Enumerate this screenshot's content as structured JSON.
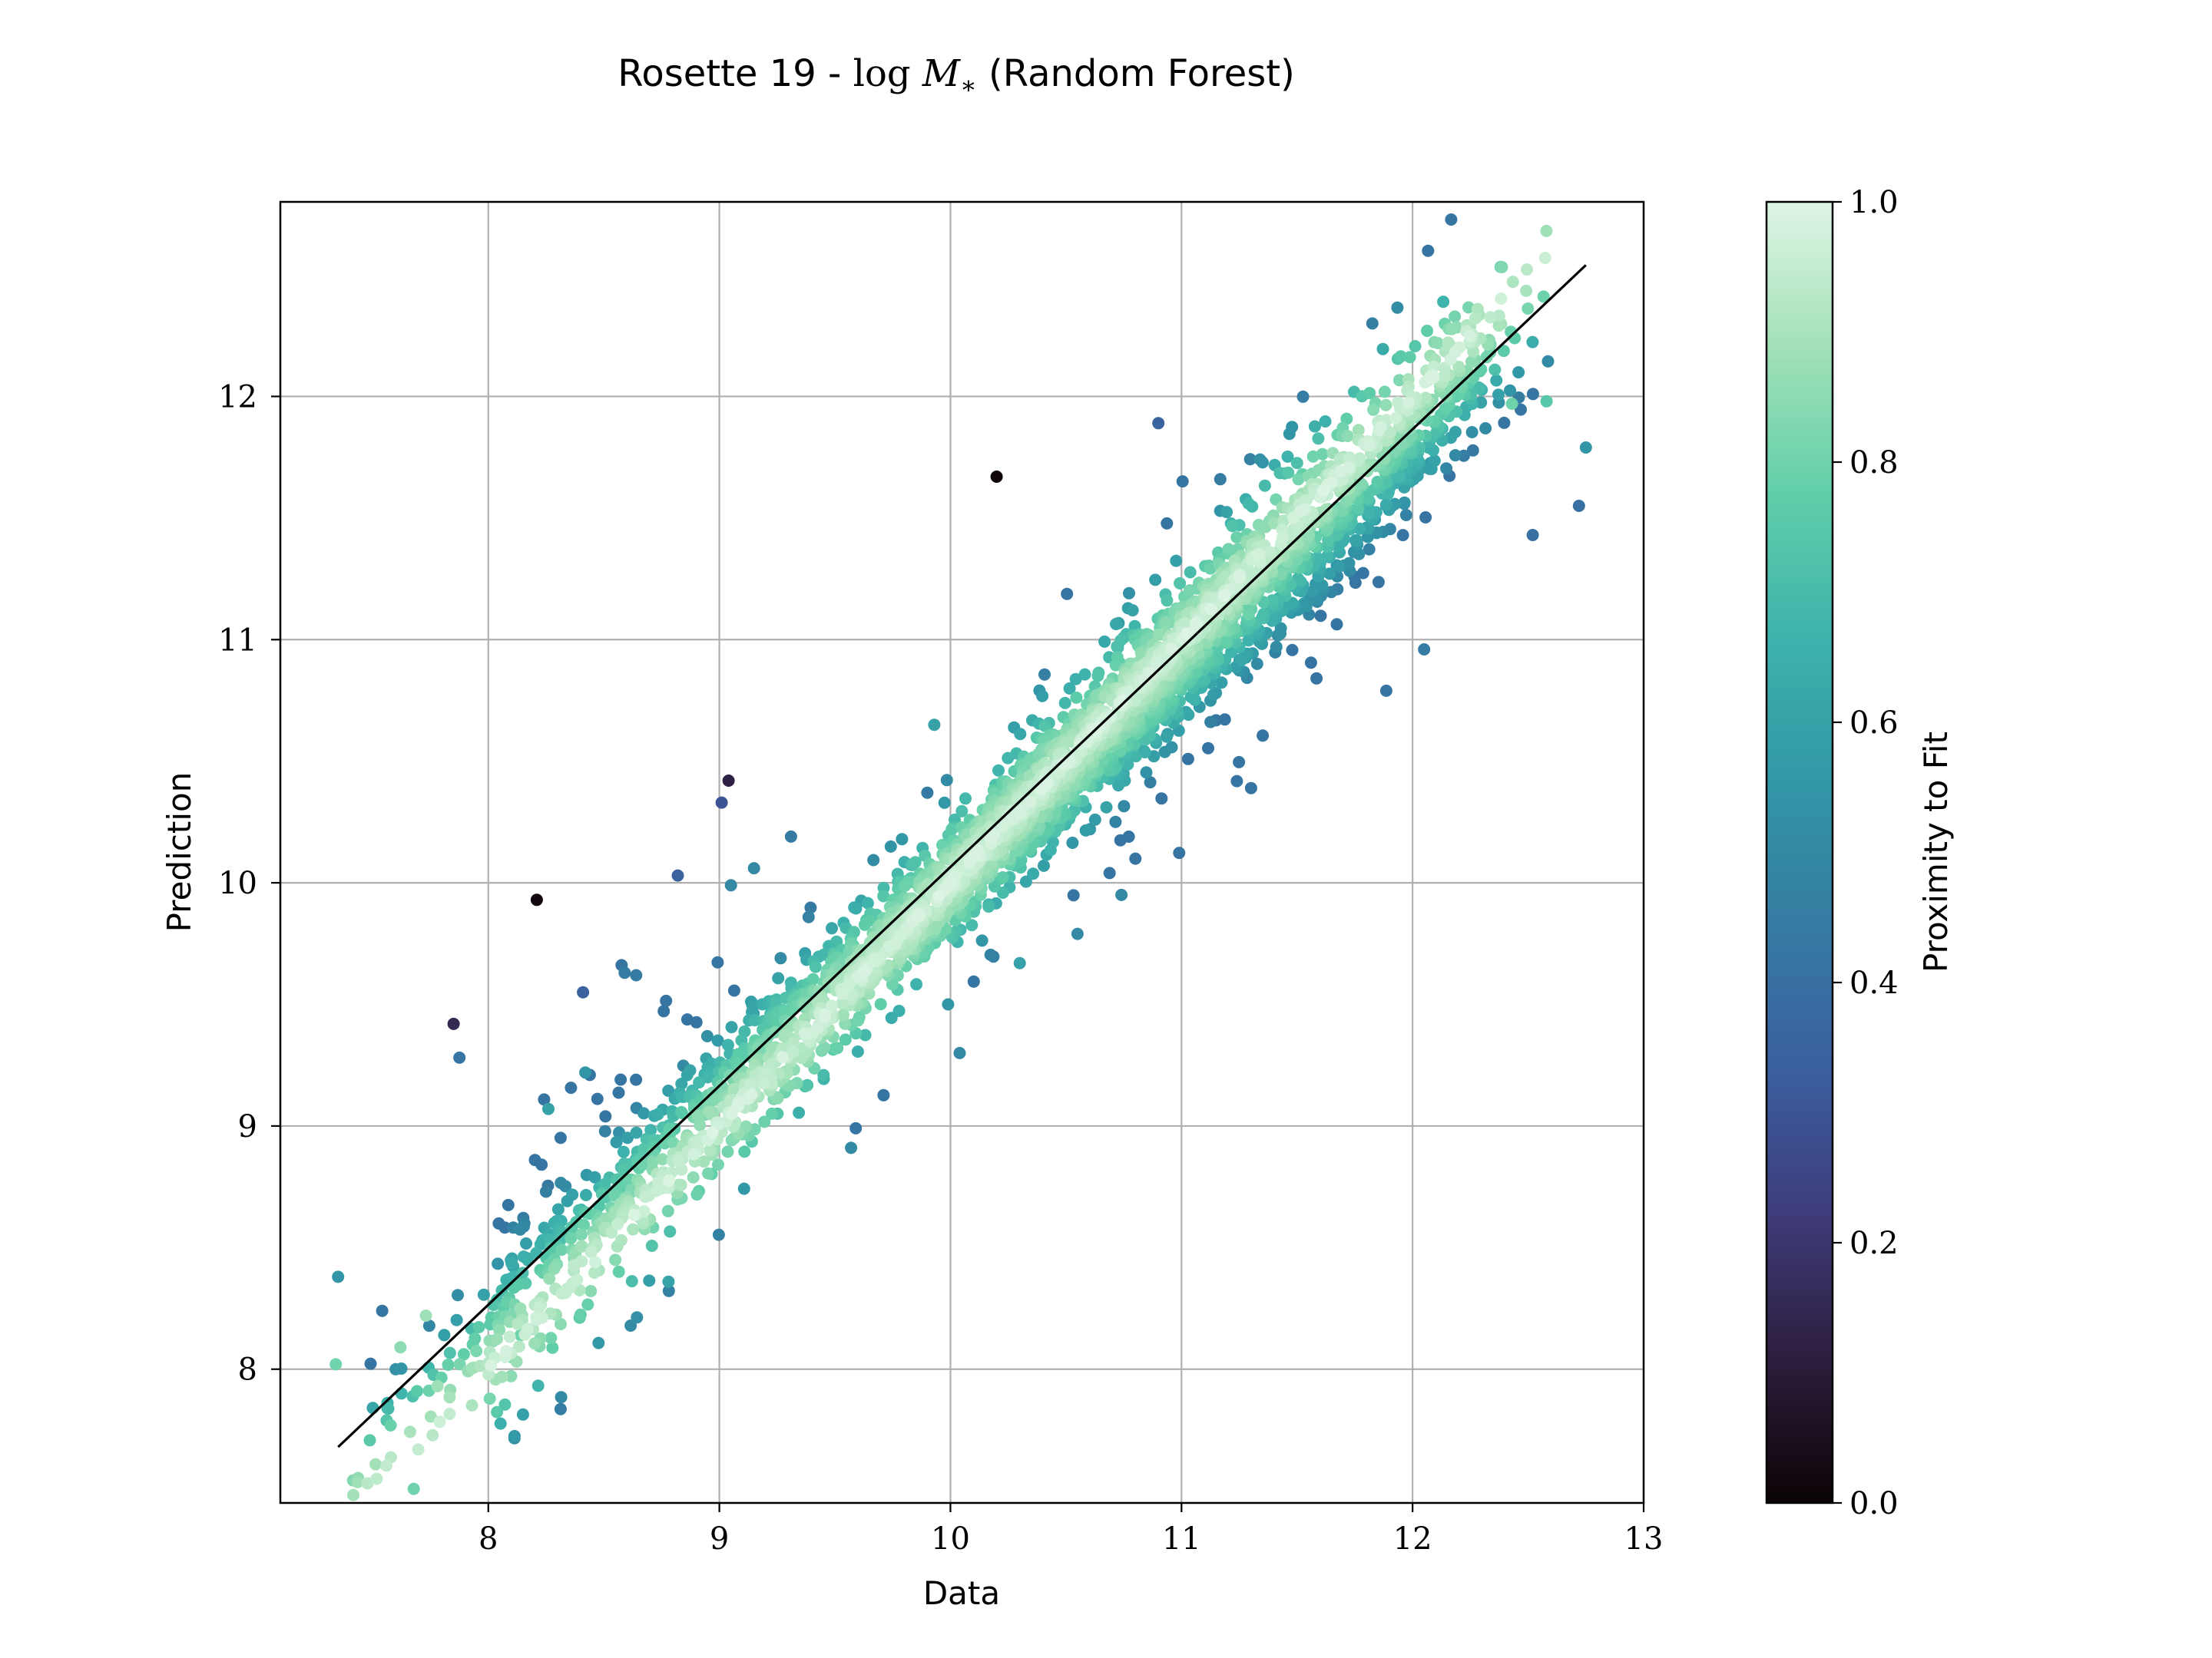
{
  "chart_data": {
    "type": "scatter",
    "title": "Rosette 19 - log M* (Random Forest)",
    "title_parts": {
      "prefix": "Rosette 19 - ",
      "log": "log",
      "symbol": "M",
      "subscript": "∗",
      "suffix": " (Random Forest)"
    },
    "xlabel": "Data",
    "ylabel": "Prediction",
    "xlim": [
      7.1,
      13.0
    ],
    "ylim": [
      7.45,
      12.8
    ],
    "x_ticks": [
      8,
      9,
      10,
      11,
      12,
      13
    ],
    "y_ticks": [
      8,
      9,
      10,
      11,
      12
    ],
    "grid": true,
    "reference_line": {
      "from": [
        7.35,
        7.68
      ],
      "to": [
        12.75,
        12.54
      ],
      "color": "#000000"
    },
    "colorbar": {
      "label": "Proximity to Fit",
      "range": [
        0.0,
        1.0
      ],
      "ticks": [
        "0.0",
        "0.2",
        "0.4",
        "0.6",
        "0.8",
        "1.0"
      ],
      "colormap": "mako",
      "stops": [
        "#0b0405",
        "#2d1e3e",
        "#3e3c7a",
        "#3b5fa0",
        "#357ba2",
        "#3297a6",
        "#3eb3ac",
        "#62cfa9",
        "#a3e1b8",
        "#def5e5"
      ]
    },
    "main_band": {
      "x_range": [
        7.4,
        12.6
      ],
      "point_count": 3600,
      "seed": 19
    },
    "points": [
      {
        "x": 7.35,
        "y": 8.38,
        "v": 0.55
      },
      {
        "x": 7.34,
        "y": 8.02,
        "v": 0.8
      },
      {
        "x": 7.62,
        "y": 8.09,
        "v": 0.85
      },
      {
        "x": 7.78,
        "y": 7.93,
        "v": 0.88
      },
      {
        "x": 7.73,
        "y": 8.22,
        "v": 0.88
      },
      {
        "x": 7.85,
        "y": 9.42,
        "v": 0.15
      },
      {
        "x": 8.21,
        "y": 9.93,
        "v": 0.02
      },
      {
        "x": 8.41,
        "y": 9.55,
        "v": 0.35
      },
      {
        "x": 8.59,
        "y": 9.63,
        "v": 0.45
      },
      {
        "x": 8.64,
        "y": 9.62,
        "v": 0.45
      },
      {
        "x": 8.42,
        "y": 9.22,
        "v": 0.55
      },
      {
        "x": 8.26,
        "y": 9.07,
        "v": 0.6
      },
      {
        "x": 8.82,
        "y": 10.03,
        "v": 0.35
      },
      {
        "x": 9.01,
        "y": 10.33,
        "v": 0.3
      },
      {
        "x": 9.04,
        "y": 10.42,
        "v": 0.12
      },
      {
        "x": 9.31,
        "y": 10.19,
        "v": 0.45
      },
      {
        "x": 9.15,
        "y": 10.06,
        "v": 0.5
      },
      {
        "x": 9.05,
        "y": 9.99,
        "v": 0.5
      },
      {
        "x": 9.57,
        "y": 8.91,
        "v": 0.5
      },
      {
        "x": 8.78,
        "y": 8.36,
        "v": 0.6
      },
      {
        "x": 10.04,
        "y": 9.3,
        "v": 0.5
      },
      {
        "x": 10.2,
        "y": 11.67,
        "v": 0.01
      },
      {
        "x": 10.9,
        "y": 11.89,
        "v": 0.35
      },
      {
        "x": 10.55,
        "y": 9.79,
        "v": 0.5
      },
      {
        "x": 10.74,
        "y": 9.95,
        "v": 0.5
      },
      {
        "x": 12.05,
        "y": 10.96,
        "v": 0.45
      },
      {
        "x": 12.75,
        "y": 11.79,
        "v": 0.55
      },
      {
        "x": 12.72,
        "y": 11.55,
        "v": 0.4
      },
      {
        "x": 12.58,
        "y": 11.98,
        "v": 0.75
      },
      {
        "x": 12.43,
        "y": 11.97,
        "v": 0.8
      },
      {
        "x": 12.52,
        "y": 11.43,
        "v": 0.4
      },
      {
        "x": 9.93,
        "y": 10.65,
        "v": 0.6
      },
      {
        "x": 9.99,
        "y": 9.5,
        "v": 0.55
      },
      {
        "x": 10.3,
        "y": 9.67,
        "v": 0.6
      },
      {
        "x": 8.1,
        "y": 8.05,
        "v": 0.8
      },
      {
        "x": 8.14,
        "y": 8.14,
        "v": 0.8
      }
    ]
  }
}
